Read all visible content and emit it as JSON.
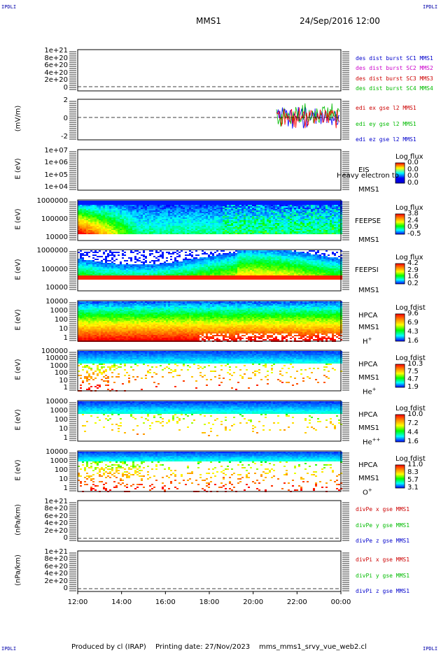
{
  "header": {
    "corner_label": "IPDLI",
    "spacecraft": "MMS1",
    "date": "24/Sep/2016 12:00"
  },
  "x_ticks": [
    "12:00",
    "14:00",
    "16:00",
    "18:00",
    "20:00",
    "22:00",
    "00:00"
  ],
  "panels": [
    {
      "id": "des",
      "ylabel": "",
      "yticks": [
        "1e+21",
        "8e+20",
        "6e+20",
        "4e+20",
        "2e+20",
        "0"
      ],
      "legend": [
        {
          "text": "des dist burst SC1 MMS1",
          "color": "#0000cc"
        },
        {
          "text": "des dist burst SC2 MMS2",
          "color": "#cc00cc"
        },
        {
          "text": "des dist burst SC3 MMS3",
          "color": "#cc0000"
        },
        {
          "text": "des dist burst SC4 MMS4",
          "color": "#00bb00"
        }
      ]
    },
    {
      "id": "edi",
      "ylabel": "(mV/m)",
      "yticks": [
        "2",
        "0",
        "-2"
      ],
      "legend": [
        {
          "text": "edi ex gse l2 MMS1",
          "color": "#cc0000"
        },
        {
          "text": "edi ey gse l2 MMS1",
          "color": "#00bb00"
        },
        {
          "text": "edi ez gse l2 MMS1",
          "color": "#0000cc"
        }
      ]
    },
    {
      "id": "eis",
      "ylabel": "E (eV)",
      "yticks": [
        "1e+07",
        "1e+06",
        "1e+05",
        "1e+04"
      ],
      "inst": [
        "EIS",
        "MMS1"
      ],
      "overlay": "Heavy electron to",
      "cb_title": "Log flux",
      "cb_values": [
        "0.0",
        "0.0",
        "0.0",
        "0.0"
      ]
    },
    {
      "id": "feepse",
      "ylabel": "E (eV)",
      "yticks": [
        "1000000",
        "100000",
        "10000"
      ],
      "inst": [
        "FEEPSE",
        "MMS1"
      ],
      "cb_title": "Log flux",
      "cb_values": [
        "3.8",
        "2.4",
        "0.9",
        "-0.5"
      ]
    },
    {
      "id": "feepsi",
      "ylabel": "E (eV)",
      "yticks": [
        "1000000",
        "100000",
        "10000"
      ],
      "inst": [
        "FEEPSI",
        "MMS1"
      ],
      "cb_title": "Log flux",
      "cb_values": [
        "4.2",
        "2.9",
        "1.6",
        "0.2"
      ]
    },
    {
      "id": "hpca_h",
      "ylabel": "E (eV)",
      "yticks": [
        "10000",
        "1000",
        "100",
        "10",
        "1"
      ],
      "inst": [
        "HPCA",
        "MMS1"
      ],
      "species": "H",
      "species_sup": "+",
      "cb_title": "Log fdist",
      "cb_values": [
        "9.6",
        "6.9",
        "4.3",
        "1.6"
      ]
    },
    {
      "id": "hpca_he",
      "ylabel": "E (eV)",
      "yticks": [
        "100000",
        "10000",
        "1000",
        "100",
        "10",
        "1"
      ],
      "inst": [
        "HPCA",
        "MMS1"
      ],
      "species": "He",
      "species_sup": "+",
      "cb_title": "Log fdist",
      "cb_values": [
        "10.3",
        "7.5",
        "4.7",
        "1.9"
      ]
    },
    {
      "id": "hpca_he2",
      "ylabel": "E (eV)",
      "yticks": [
        "10000",
        "1000",
        "100",
        "10",
        "1"
      ],
      "inst": [
        "HPCA",
        "MMS1"
      ],
      "species": "He",
      "species_sup": "++",
      "cb_title": "Log fdist",
      "cb_values": [
        "10.0",
        "7.2",
        "4.4",
        "1.6"
      ]
    },
    {
      "id": "hpca_o",
      "ylabel": "E (eV)",
      "yticks": [
        "10000",
        "1000",
        "100",
        "10",
        "1"
      ],
      "inst": [
        "HPCA",
        "MMS1"
      ],
      "species": "O",
      "species_sup": "+",
      "cb_title": "Log fdist",
      "cb_values": [
        "11.0",
        "8.3",
        "5.7",
        "3.1"
      ]
    },
    {
      "id": "divpe",
      "ylabel": "(nPa/km)",
      "yticks": [
        "1e+21",
        "8e+20",
        "6e+20",
        "4e+20",
        "2e+20",
        "0"
      ],
      "legend": [
        {
          "text": "divPe x gse MMS1",
          "color": "#cc0000"
        },
        {
          "text": "divPe y gse MMS1",
          "color": "#00bb00"
        },
        {
          "text": "divPe z gse MMS1",
          "color": "#0000cc"
        }
      ]
    },
    {
      "id": "divpi",
      "ylabel": "(nPa/km)",
      "yticks": [
        "1e+21",
        "8e+20",
        "6e+20",
        "4e+20",
        "2e+20",
        "0"
      ],
      "legend": [
        {
          "text": "divPi x gse MMS1",
          "color": "#cc0000"
        },
        {
          "text": "divPi y gse MMS1",
          "color": "#00bb00"
        },
        {
          "text": "divPi z gse MMS1",
          "color": "#0000cc"
        }
      ]
    }
  ],
  "footer": {
    "produced": "Produced by cl (IRAP)",
    "printing": "Printing date: 27/Nov/2023",
    "file": "mms_mms1_srvy_vue_web2.cl"
  },
  "chart_data": {
    "type": "heatmap",
    "x": [
      "12:00",
      "14:00",
      "16:00",
      "18:00",
      "20:00",
      "22:00",
      "00:00"
    ],
    "colorscale": [
      "#0000ff",
      "#00ffff",
      "#00ff00",
      "#ffff00",
      "#ff8800",
      "#ff0000"
    ]
  }
}
